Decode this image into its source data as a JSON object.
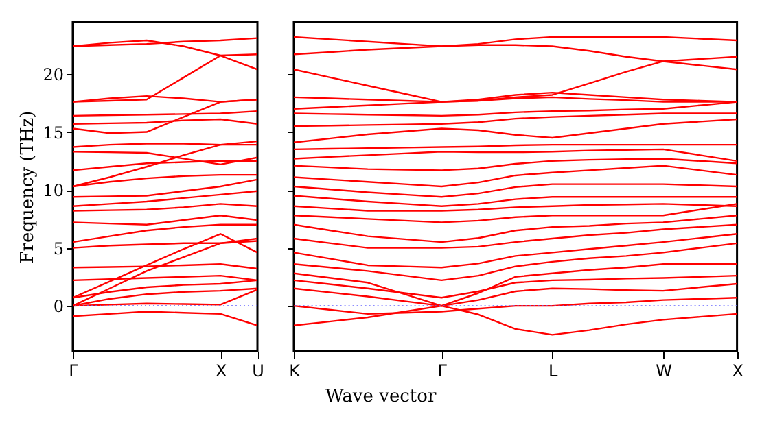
{
  "chart_data": [
    {
      "type": "line",
      "ylabel": "Frequency (THz)",
      "categories": [
        "Γ",
        null,
        null,
        null,
        "X",
        "U"
      ],
      "ylim": [
        -3.9,
        24.5
      ],
      "yticks": [
        0,
        5,
        10,
        15,
        20
      ],
      "line_style": "solid",
      "ref_lines": [
        {
          "axis": "y",
          "value": 0,
          "color": "#6666ff",
          "line_style": "dotted"
        }
      ],
      "series": [
        {
          "color": "#ff0000",
          "values": [
            -0.9,
            -0.7,
            -0.5,
            -0.6,
            -0.7,
            -1.7
          ]
        },
        {
          "color": "#ff0000",
          "values": [
            0,
            0.1,
            0.2,
            0.15,
            0.1,
            1.4
          ]
        },
        {
          "color": "#ff0000",
          "values": [
            0,
            0.6,
            1.0,
            1.2,
            1.3,
            1.5
          ]
        },
        {
          "color": "#ff0000",
          "values": [
            0.7,
            1.2,
            1.6,
            1.8,
            1.9,
            2.2
          ]
        },
        {
          "color": "#ff0000",
          "values": [
            0,
            1.5,
            3.0,
            4.2,
            5.4,
            5.6
          ]
        },
        {
          "color": "#ff0000",
          "values": [
            0.7,
            2.1,
            3.5,
            4.9,
            6.2,
            4.6
          ]
        },
        {
          "color": "#ff0000",
          "values": [
            2.2,
            2.3,
            2.4,
            2.5,
            2.6,
            2.2
          ]
        },
        {
          "color": "#ff0000",
          "values": [
            3.3,
            3.35,
            3.4,
            3.5,
            3.6,
            3.2
          ]
        },
        {
          "color": "#ff0000",
          "values": [
            5.0,
            5.2,
            5.3,
            5.4,
            5.4,
            5.8
          ]
        },
        {
          "color": "#ff0000",
          "values": [
            5.5,
            6.0,
            6.5,
            6.8,
            7.0,
            7.0
          ]
        },
        {
          "color": "#ff0000",
          "values": [
            7.2,
            7.1,
            7.0,
            7.4,
            7.8,
            7.4
          ]
        },
        {
          "color": "#ff0000",
          "values": [
            8.2,
            8.25,
            8.3,
            8.5,
            8.8,
            8.6
          ]
        },
        {
          "color": "#ff0000",
          "values": [
            8.6,
            8.8,
            9.0,
            9.3,
            9.6,
            9.9
          ]
        },
        {
          "color": "#ff0000",
          "values": [
            9.4,
            9.45,
            9.5,
            9.9,
            10.3,
            10.9
          ]
        },
        {
          "color": "#ff0000",
          "values": [
            10.3,
            10.7,
            11.0,
            11.2,
            11.3,
            11.3
          ]
        },
        {
          "color": "#ff0000",
          "values": [
            10.3,
            11.1,
            12.0,
            13.0,
            13.9,
            13.9
          ]
        },
        {
          "color": "#ff0000",
          "values": [
            11.7,
            12.0,
            12.3,
            12.4,
            12.5,
            12.5
          ]
        },
        {
          "color": "#ff0000",
          "values": [
            13.3,
            13.25,
            13.2,
            12.7,
            12.2,
            12.8
          ]
        },
        {
          "color": "#ff0000",
          "values": [
            13.7,
            13.9,
            14.0,
            14.0,
            13.9,
            14.2
          ]
        },
        {
          "color": "#ff0000",
          "values": [
            15.3,
            14.9,
            15.0,
            16.3,
            17.6,
            17.8
          ]
        },
        {
          "color": "#ff0000",
          "values": [
            15.7,
            15.75,
            15.8,
            16.0,
            16.1,
            15.7
          ]
        },
        {
          "color": "#ff0000",
          "values": [
            16.4,
            16.45,
            16.5,
            16.55,
            16.6,
            16.8
          ]
        },
        {
          "color": "#ff0000",
          "values": [
            17.6,
            17.9,
            18.1,
            17.9,
            17.6,
            17.8
          ]
        },
        {
          "color": "#ff0000",
          "values": [
            17.6,
            17.7,
            17.8,
            19.7,
            21.6,
            20.4
          ]
        },
        {
          "color": "#ff0000",
          "values": [
            22.4,
            22.7,
            22.9,
            22.4,
            21.6,
            21.7
          ]
        },
        {
          "color": "#ff0000",
          "values": [
            22.4,
            22.5,
            22.6,
            22.8,
            22.9,
            23.1
          ]
        }
      ]
    },
    {
      "type": "line",
      "xlabel": "Wave vector",
      "categories": [
        "K",
        null,
        null,
        null,
        "Γ",
        null,
        null,
        "L",
        null,
        null,
        "W",
        null,
        "X"
      ],
      "ylim": [
        -3.9,
        24.5
      ],
      "yticks": [
        0,
        5,
        10,
        15,
        20
      ],
      "tick_labels": "x",
      "line_style": "solid",
      "ref_lines": [
        {
          "axis": "y",
          "value": 0,
          "color": "#6666ff",
          "line_style": "dotted"
        }
      ],
      "series": [
        {
          "color": "#ff0000",
          "values": [
            -1.7,
            -1.35,
            -1.0,
            -0.5,
            0,
            -0.75,
            -2.0,
            -2.5,
            -2.1,
            -1.6,
            -1.2,
            -0.95,
            -0.7
          ]
        },
        {
          "color": "#ff0000",
          "values": [
            0,
            -0.35,
            -0.7,
            -0.6,
            -0.5,
            -0.25,
            0,
            0,
            0.2,
            0.3,
            0.5,
            0.6,
            0.7
          ]
        },
        {
          "color": "#ff0000",
          "values": [
            1.5,
            1.15,
            0.8,
            0.4,
            0,
            0.5,
            1.25,
            1.5,
            1.45,
            1.35,
            1.3,
            1.6,
            1.9
          ]
        },
        {
          "color": "#ff0000",
          "values": [
            2.2,
            1.85,
            1.5,
            1.1,
            0.7,
            1.25,
            2.0,
            2.2,
            2.25,
            2.35,
            2.4,
            2.5,
            2.6
          ]
        },
        {
          "color": "#ff0000",
          "values": [
            2.8,
            2.4,
            2.0,
            1.0,
            0,
            1.1,
            2.5,
            2.8,
            3.1,
            3.3,
            3.6,
            3.6,
            3.6
          ]
        },
        {
          "color": "#ff0000",
          "values": [
            3.6,
            3.3,
            3.0,
            2.6,
            2.2,
            2.6,
            3.4,
            3.8,
            4.1,
            4.3,
            4.6,
            5.0,
            5.4
          ]
        },
        {
          "color": "#ff0000",
          "values": [
            4.6,
            4.05,
            3.5,
            3.4,
            3.3,
            3.65,
            4.3,
            4.6,
            4.9,
            5.2,
            5.5,
            5.85,
            6.2
          ]
        },
        {
          "color": "#ff0000",
          "values": [
            5.8,
            5.4,
            5.0,
            5.0,
            5.0,
            5.1,
            5.5,
            5.8,
            6.1,
            6.3,
            6.6,
            6.8,
            7.0
          ]
        },
        {
          "color": "#ff0000",
          "values": [
            7.0,
            6.5,
            6.0,
            5.75,
            5.5,
            5.85,
            6.5,
            6.8,
            6.9,
            7.1,
            7.2,
            7.5,
            7.8
          ]
        },
        {
          "color": "#ff0000",
          "values": [
            7.8,
            7.65,
            7.5,
            7.35,
            7.2,
            7.35,
            7.65,
            7.8,
            7.8,
            7.8,
            7.8,
            8.3,
            8.8
          ]
        },
        {
          "color": "#ff0000",
          "values": [
            8.6,
            8.4,
            8.2,
            8.2,
            8.2,
            8.3,
            8.5,
            8.6,
            8.7,
            8.75,
            8.8,
            8.7,
            8.6
          ]
        },
        {
          "color": "#ff0000",
          "values": [
            9.5,
            9.25,
            9.0,
            8.8,
            8.6,
            8.8,
            9.2,
            9.4,
            9.4,
            9.4,
            9.4,
            9.4,
            9.4
          ]
        },
        {
          "color": "#ff0000",
          "values": [
            10.3,
            10.05,
            9.8,
            9.6,
            9.4,
            9.7,
            10.25,
            10.5,
            10.5,
            10.5,
            10.5,
            10.4,
            10.3
          ]
        },
        {
          "color": "#ff0000",
          "values": [
            11.1,
            10.9,
            10.7,
            10.5,
            10.3,
            10.65,
            11.25,
            11.5,
            11.7,
            11.9,
            12.1,
            11.7,
            11.3
          ]
        },
        {
          "color": "#ff0000",
          "values": [
            12.1,
            11.95,
            11.8,
            11.75,
            11.7,
            11.85,
            12.25,
            12.5,
            12.6,
            12.65,
            12.7,
            12.5,
            12.3
          ]
        },
        {
          "color": "#ff0000",
          "values": [
            12.7,
            12.85,
            13.0,
            13.15,
            13.3,
            13.25,
            13.25,
            13.3,
            13.4,
            13.45,
            13.5,
            13.0,
            12.5
          ]
        },
        {
          "color": "#ff0000",
          "values": [
            13.5,
            13.55,
            13.6,
            13.65,
            13.7,
            13.75,
            13.85,
            13.9,
            13.9,
            13.9,
            13.9,
            13.9,
            13.9
          ]
        },
        {
          "color": "#ff0000",
          "values": [
            14.1,
            14.45,
            14.8,
            15.05,
            15.3,
            15.15,
            14.75,
            14.5,
            14.9,
            15.3,
            15.7,
            15.9,
            16.1
          ]
        },
        {
          "color": "#ff0000",
          "values": [
            15.5,
            15.55,
            15.6,
            15.65,
            15.7,
            15.85,
            16.15,
            16.3,
            16.4,
            16.5,
            16.6,
            16.6,
            16.6
          ]
        },
        {
          "color": "#ff0000",
          "values": [
            16.6,
            16.55,
            16.5,
            16.45,
            16.4,
            16.5,
            16.7,
            16.8,
            16.85,
            16.95,
            17.0,
            17.3,
            17.6
          ]
        },
        {
          "color": "#ff0000",
          "values": [
            17.0,
            17.15,
            17.3,
            17.45,
            17.6,
            17.7,
            17.9,
            18.0,
            17.85,
            17.75,
            17.6,
            17.6,
            17.6
          ]
        },
        {
          "color": "#ff0000",
          "values": [
            18.0,
            17.9,
            17.8,
            17.7,
            17.6,
            17.8,
            18.2,
            18.4,
            18.2,
            18.0,
            17.8,
            17.7,
            17.6
          ]
        },
        {
          "color": "#ff0000",
          "values": [
            20.4,
            19.7,
            19.0,
            18.3,
            17.6,
            17.7,
            18.0,
            18.2,
            19.2,
            20.2,
            21.1,
            20.75,
            20.4
          ]
        },
        {
          "color": "#ff0000",
          "values": [
            21.7,
            21.9,
            22.1,
            22.25,
            22.4,
            22.5,
            22.5,
            22.4,
            22.0,
            21.5,
            21.1,
            21.3,
            21.5
          ]
        },
        {
          "color": "#ff0000",
          "values": [
            23.2,
            23.0,
            22.8,
            22.6,
            22.4,
            22.6,
            23.0,
            23.2,
            23.2,
            23.2,
            23.2,
            23.05,
            22.9
          ]
        }
      ]
    }
  ]
}
